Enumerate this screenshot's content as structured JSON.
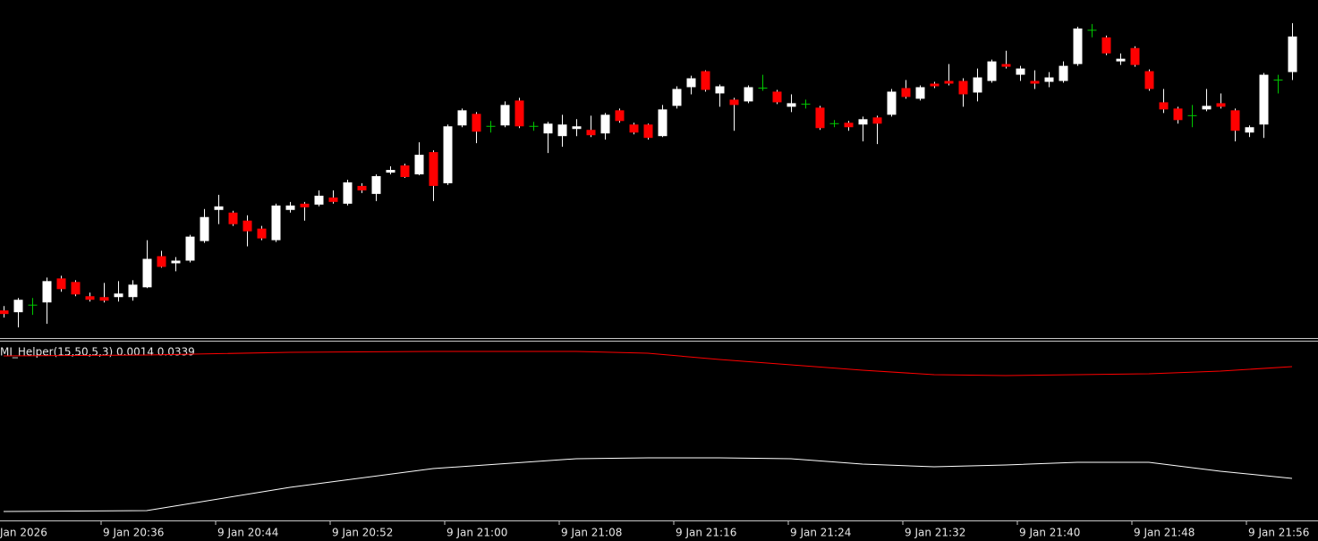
{
  "chart_data": [
    {
      "type": "candlestick",
      "up_color": "#ffffff",
      "down_color": "#ff0000",
      "doji_color": "#00c800",
      "ylim": [
        0,
        380
      ],
      "open": [
        33,
        31,
        39,
        42,
        69,
        65,
        49,
        48,
        48,
        48,
        59,
        94,
        86,
        89,
        111,
        146,
        143,
        134,
        125,
        112,
        146,
        153,
        152,
        160,
        153,
        173,
        164,
        188,
        196,
        186,
        211,
        176,
        241,
        254,
        240,
        241,
        269,
        240,
        232,
        229,
        237,
        236,
        232,
        258,
        242,
        242,
        229,
        263,
        284,
        302,
        277,
        270,
        268,
        283,
        279,
        262,
        265,
        261,
        243,
        244,
        242,
        250,
        253,
        283,
        271,
        288,
        291,
        291,
        278,
        291,
        310,
        298,
        291,
        290,
        291,
        310,
        348,
        340,
        313,
        328,
        302,
        267,
        260,
        252,
        259,
        266,
        258,
        233,
        242,
        292,
        301
      ],
      "high": [
        38,
        47,
        47,
        70,
        72,
        67,
        53,
        64,
        66,
        67,
        112,
        100,
        93,
        118,
        147,
        163,
        145,
        140,
        128,
        153,
        155,
        155,
        168,
        168,
        180,
        176,
        186,
        195,
        198,
        222,
        213,
        242,
        260,
        256,
        246,
        268,
        272,
        245,
        245,
        253,
        248,
        252,
        255,
        260,
        244,
        243,
        264,
        285,
        297,
        303,
        287,
        272,
        286,
        298,
        281,
        276,
        270,
        263,
        247,
        246,
        251,
        252,
        282,
        292,
        286,
        290,
        310,
        294,
        305,
        315,
        325,
        308,
        303,
        301,
        313,
        352,
        355,
        342,
        322,
        330,
        304,
        282,
        262,
        264,
        282,
        277,
        260,
        241,
        300,
        298,
        356
      ],
      "low": [
        25,
        14,
        28,
        18,
        54,
        49,
        43,
        42,
        43,
        44,
        58,
        81,
        77,
        87,
        109,
        130,
        128,
        105,
        112,
        110,
        143,
        134,
        150,
        153,
        151,
        165,
        156,
        186,
        182,
        185,
        156,
        174,
        239,
        221,
        233,
        239,
        238,
        235,
        210,
        217,
        229,
        228,
        225,
        244,
        231,
        225,
        228,
        260,
        276,
        279,
        262,
        235,
        266,
        280,
        265,
        256,
        260,
        236,
        239,
        235,
        223,
        220,
        251,
        271,
        269,
        283,
        286,
        262,
        268,
        289,
        305,
        291,
        282,
        284,
        289,
        308,
        340,
        320,
        309,
        307,
        280,
        255,
        243,
        239,
        257,
        260,
        223,
        228,
        227,
        277,
        292
      ],
      "close": [
        29,
        45,
        39,
        66,
        57,
        51,
        45,
        44,
        52,
        62,
        91,
        82,
        89,
        116,
        138,
        150,
        130,
        122,
        114,
        151,
        151,
        149,
        162,
        155,
        177,
        168,
        184,
        191,
        183,
        208,
        173,
        240,
        258,
        234,
        240,
        264,
        240,
        240,
        243,
        242,
        240,
        230,
        253,
        246,
        233,
        227,
        259,
        282,
        294,
        281,
        285,
        264,
        284,
        283,
        267,
        266,
        265,
        238,
        243,
        239,
        248,
        243,
        279,
        273,
        284,
        285,
        288,
        276,
        295,
        313,
        307,
        305,
        288,
        295,
        308,
        350,
        348,
        322,
        316,
        309,
        282,
        259,
        247,
        252,
        263,
        262,
        235,
        239,
        298,
        292,
        341
      ],
      "x_labels": [
        "Jan 2026",
        "9 Jan 20:36",
        "9 Jan 20:44",
        "9 Jan 20:52",
        "9 Jan 21:00",
        "9 Jan 21:08",
        "9 Jan 21:16",
        "9 Jan 21:24",
        "9 Jan 21:32",
        "9 Jan 21:40",
        "9 Jan 21:48",
        "9 Jan 21:56"
      ]
    },
    {
      "type": "line",
      "title": "MI_Helper(15,50,5,3) 0.0014 0.0339",
      "ylim": [
        0,
        200
      ],
      "x": [
        0,
        10,
        20,
        30,
        40,
        45,
        50,
        55,
        60,
        65,
        70,
        75,
        80,
        85,
        90
      ],
      "series": [
        {
          "color": "#ff0000",
          "values": [
            184,
            185,
            188,
            189,
            189,
            187,
            180,
            174,
            168,
            163,
            162,
            163,
            164,
            167,
            172
          ]
        },
        {
          "color": "#ffffff",
          "values": [
            10,
            11,
            37,
            58,
            69,
            70,
            70,
            69,
            63,
            60,
            62,
            65,
            65,
            55,
            47
          ]
        }
      ]
    }
  ]
}
